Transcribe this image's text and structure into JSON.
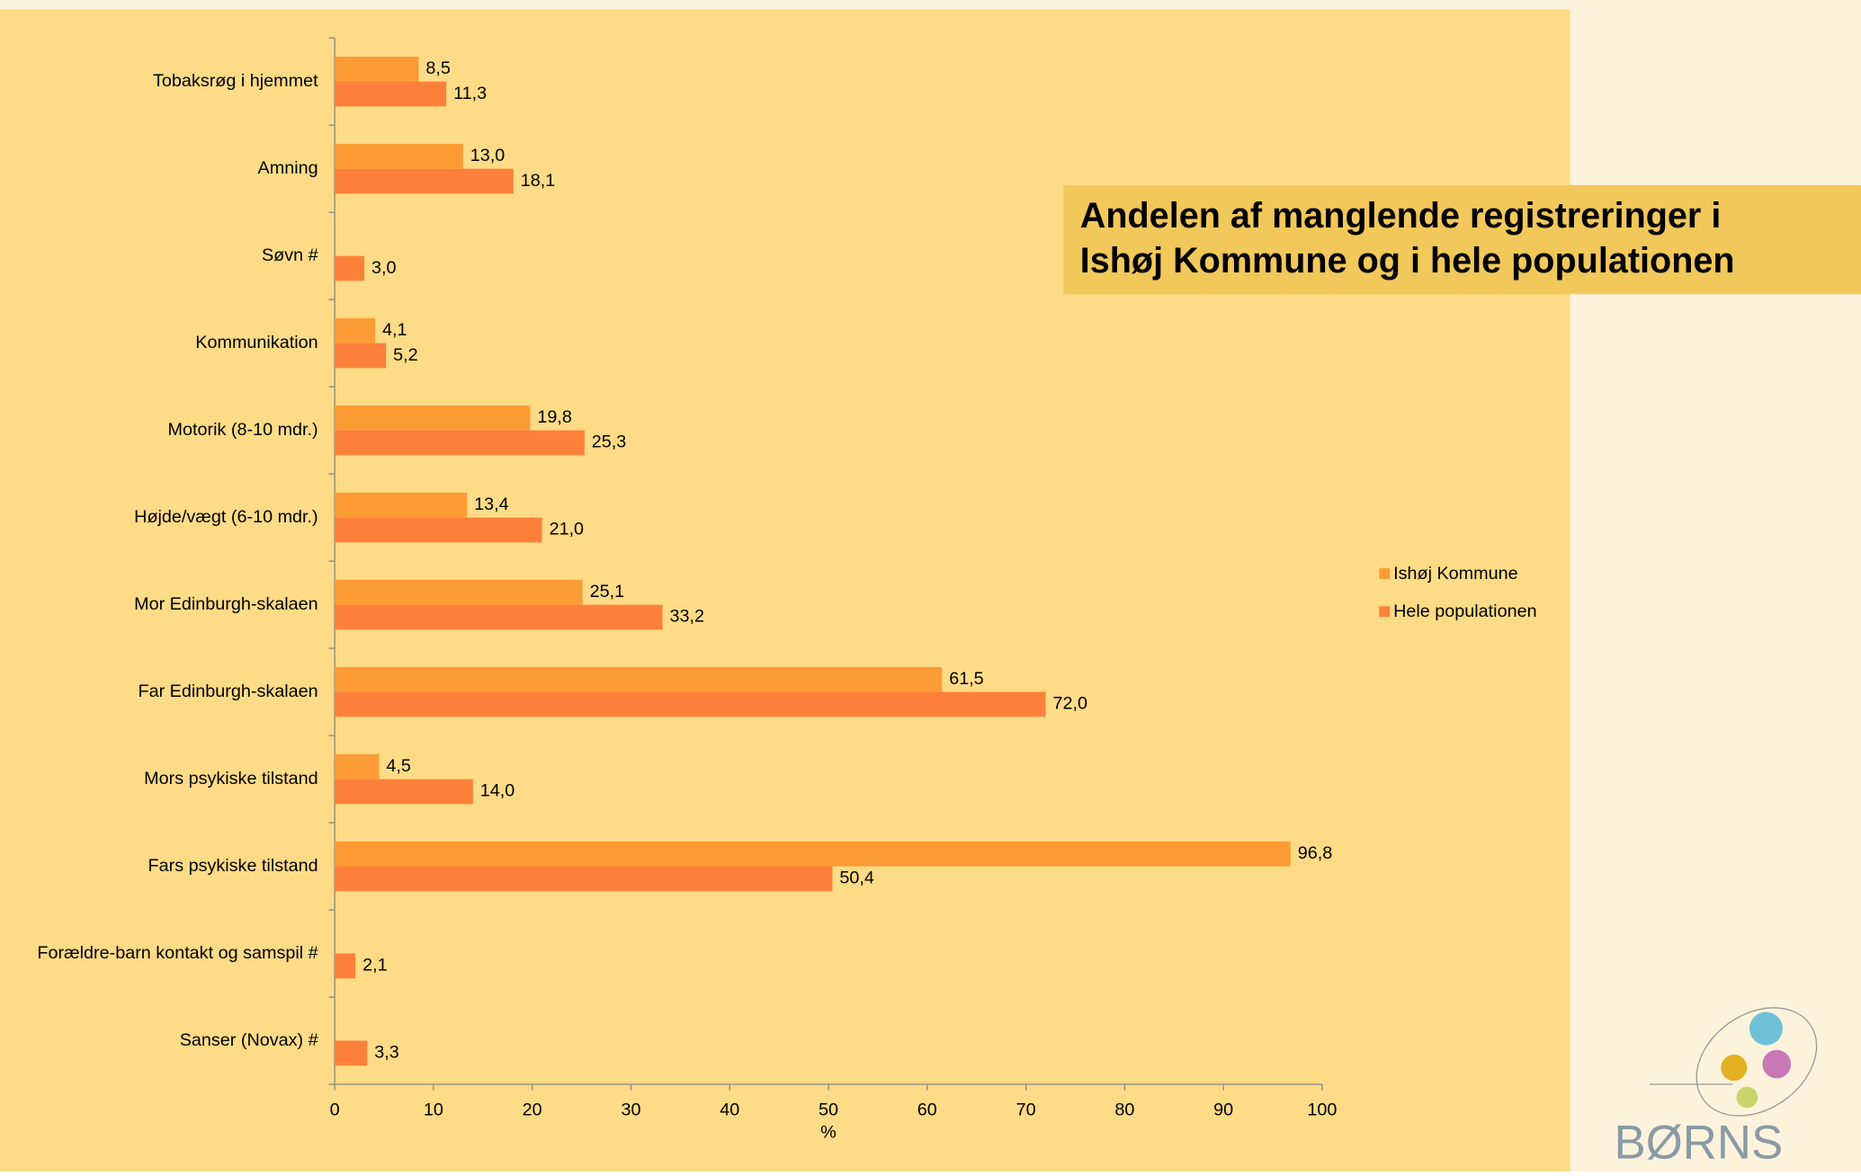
{
  "chart_data": {
    "type": "hbar",
    "title": "Andelen af manglende registreringer i Ishøj Kommune og i hele populationen",
    "categories": [
      "Tobaksrøg i hjemmet",
      "Amning",
      "Søvn #",
      "Kommunikation",
      "Motorik (8-10 mdr.)",
      "Højde/vægt (6-10 mdr.)",
      "Mor Edinburgh-skalaen",
      "Far Edinburgh-skalaen",
      "Mors psykiske tilstand",
      "Fars psykiske tilstand",
      "Forældre-barn kontakt og samspil #",
      "Sanser (Novax) #"
    ],
    "series": [
      {
        "name": "Ishøj Kommune",
        "color": "#fd9b35",
        "values": [
          8.5,
          13.0,
          null,
          4.1,
          19.8,
          13.4,
          25.1,
          61.5,
          4.5,
          96.8,
          null,
          null
        ],
        "value_labels": [
          "8,5",
          "13,0",
          null,
          "4,1",
          "19,8",
          "13,4",
          "25,1",
          "61,5",
          "4,5",
          "96,8",
          null,
          null
        ]
      },
      {
        "name": "Hele populationen",
        "color": "#fd803a",
        "values": [
          11.3,
          18.1,
          3.0,
          5.2,
          25.3,
          21.0,
          33.2,
          72.0,
          14.0,
          50.4,
          2.1,
          3.3
        ],
        "value_labels": [
          "11,3",
          "18,1",
          "3,0",
          "5,2",
          "25,3",
          "21,0",
          "33,2",
          "72,0",
          "14,0",
          "50,4",
          "2,1",
          "3,3"
        ]
      }
    ],
    "xlabel": "%",
    "xlim": [
      0,
      100
    ],
    "xticks": [
      0,
      10,
      20,
      30,
      40,
      50,
      60,
      70,
      80,
      90,
      100
    ],
    "legend": "right"
  },
  "logo": "BØRNS"
}
